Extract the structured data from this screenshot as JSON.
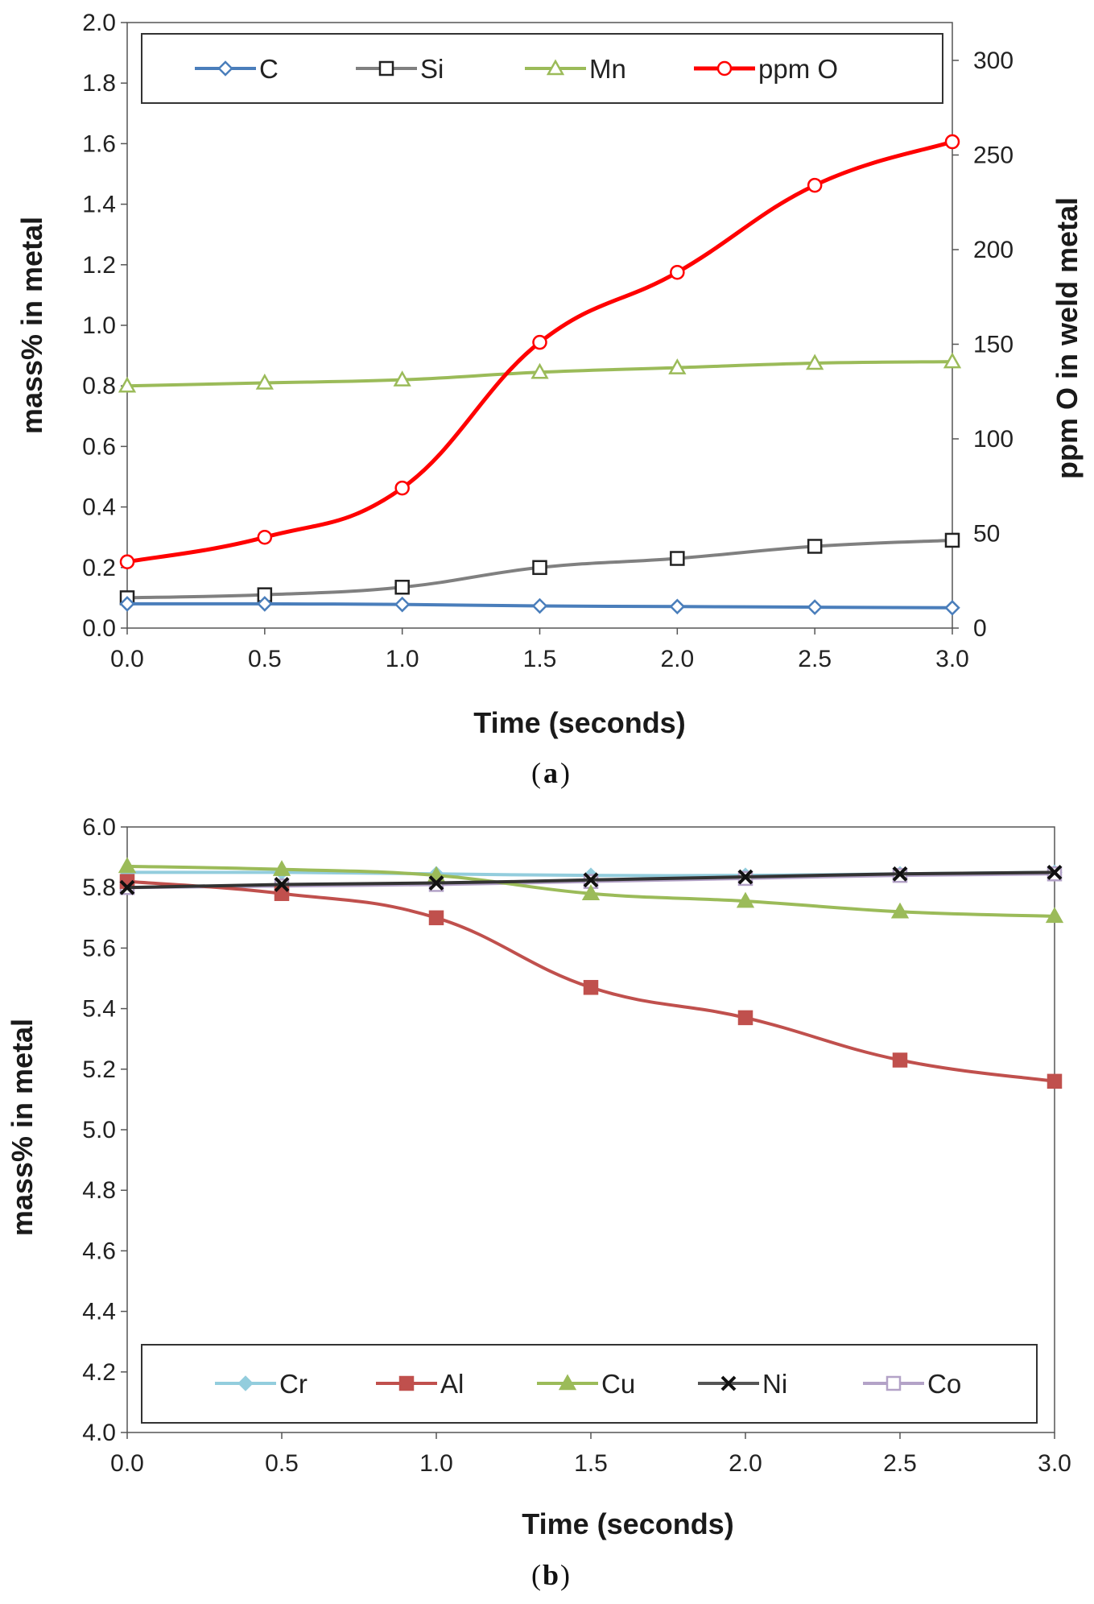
{
  "chart_data": [
    {
      "type": "line",
      "panel_label": "a",
      "xlabel": "Time (seconds)",
      "ylabel": "mass% in metal",
      "y2label": "ppm O in weld metal",
      "x": [
        0.0,
        0.5,
        1.0,
        1.5,
        2.0,
        2.5,
        3.0
      ],
      "xticks": [
        "0.0",
        "0.5",
        "1.0",
        "1.5",
        "2.0",
        "2.5",
        "3.0"
      ],
      "xlim": [
        0,
        3
      ],
      "ylim": [
        0,
        2.0
      ],
      "yticks": [
        "0.0",
        "0.2",
        "0.4",
        "0.6",
        "0.8",
        "1.0",
        "1.2",
        "1.4",
        "1.6",
        "1.8",
        "2.0"
      ],
      "y2lim": [
        0,
        320
      ],
      "y2ticks": [
        "0",
        "50",
        "100",
        "150",
        "200",
        "250",
        "300"
      ],
      "grid": false,
      "legend_position": "top",
      "series": [
        {
          "name": "C",
          "axis": "left",
          "marker": "diamond-open",
          "color": "#4a7ebb",
          "values": [
            0.08,
            0.08,
            0.078,
            0.073,
            0.071,
            0.069,
            0.067
          ]
        },
        {
          "name": "Si",
          "axis": "left",
          "marker": "square-open",
          "color": "#808080",
          "values": [
            0.1,
            0.11,
            0.135,
            0.2,
            0.23,
            0.27,
            0.29
          ]
        },
        {
          "name": "Mn",
          "axis": "left",
          "marker": "triangle-open",
          "color": "#9bbb59",
          "values": [
            0.8,
            0.81,
            0.82,
            0.845,
            0.86,
            0.875,
            0.88
          ]
        },
        {
          "name": "ppm O",
          "axis": "right",
          "marker": "circle-open",
          "color": "#ff0000",
          "values": [
            35,
            48,
            74,
            151,
            188,
            234,
            257
          ]
        }
      ]
    },
    {
      "type": "line",
      "panel_label": "b",
      "xlabel": "Time (seconds)",
      "ylabel": "mass% in metal",
      "x": [
        0.0,
        0.5,
        1.0,
        1.5,
        2.0,
        2.5,
        3.0
      ],
      "xticks": [
        "0.0",
        "0.5",
        "1.0",
        "1.5",
        "2.0",
        "2.5",
        "3.0"
      ],
      "xlim": [
        0,
        3
      ],
      "ylim": [
        4.0,
        6.0
      ],
      "yticks": [
        "4.0",
        "4.2",
        "4.4",
        "4.6",
        "4.8",
        "5.0",
        "5.2",
        "5.4",
        "5.6",
        "5.8",
        "6.0"
      ],
      "grid": false,
      "legend_position": "bottom",
      "series": [
        {
          "name": "Cr",
          "marker": "diamond-filled",
          "color": "#93cddd",
          "values": [
            5.85,
            5.85,
            5.845,
            5.84,
            5.84,
            5.845,
            5.85
          ]
        },
        {
          "name": "Al",
          "marker": "square-filled",
          "color": "#c0504d",
          "values": [
            5.82,
            5.78,
            5.7,
            5.47,
            5.37,
            5.23,
            5.16
          ]
        },
        {
          "name": "Cu",
          "marker": "triangle-filled",
          "color": "#9bbb59",
          "values": [
            5.87,
            5.86,
            5.84,
            5.78,
            5.755,
            5.72,
            5.705
          ]
        },
        {
          "name": "Ni",
          "marker": "x",
          "color": "#333333",
          "values": [
            5.8,
            5.81,
            5.815,
            5.825,
            5.835,
            5.845,
            5.85
          ]
        },
        {
          "name": "Co",
          "marker": "square-open",
          "color": "#b3a2c7",
          "values": [
            5.8,
            5.805,
            5.81,
            5.82,
            5.83,
            5.84,
            5.845
          ]
        }
      ]
    }
  ]
}
